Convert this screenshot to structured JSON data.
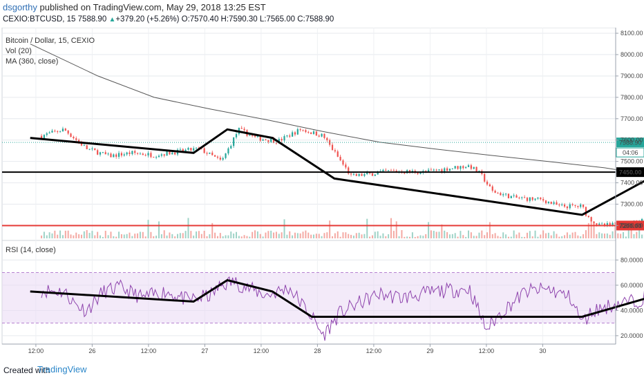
{
  "header": {
    "user": "dsgorthy",
    "published_text": "published on TradingView.com, May 29, 2018 13:25 EST",
    "symbol": "CEXIO:BTCUSD, 15",
    "last": "7588.90",
    "change": "+379.20 (+5.26%)",
    "o": "O:7570.40",
    "h": "H:7590.30",
    "l": "L:7565.00",
    "c": "C:7588.90"
  },
  "pane_labels": {
    "title": "Bitcoin / Dollar, 15, CEXIO",
    "vol": "Vol (20)",
    "ma": "MA (360, close)",
    "rsi": "RSI (14, close)"
  },
  "footer": {
    "created": "Created with",
    "brand": "TradingView"
  },
  "colors": {
    "up": "#26a69a",
    "down": "#ef5350",
    "ma": "#555555",
    "rsi": "#8e44ad",
    "rsi_band": "#e9d9f4",
    "support": "#000000",
    "red_level": "#e53935",
    "volume_up": "#9fd3c7",
    "volume_down": "#f4a9a3"
  },
  "chart_data": [
    {
      "type": "candlestick",
      "title": "Bitcoin / Dollar, 15, CEXIO",
      "x_ticks": [
        "12:00",
        "26",
        "12:00",
        "27",
        "12:00",
        "28",
        "12:00",
        "29",
        "12:00",
        "30"
      ],
      "y_ticks": [
        "8100.00",
        "8000.00",
        "7900.00",
        "7800.00",
        "7700.00",
        "7600.00",
        "7500.00",
        "7400.00",
        "7300.00",
        "7200.00"
      ],
      "ylim": [
        7140,
        8110
      ],
      "last_price_label": "7588.90",
      "countdown_label": "04:06",
      "price_path": [
        [
          0,
          7620
        ],
        [
          0.2,
          7650
        ],
        [
          0.4,
          7560
        ],
        [
          0.6,
          7525
        ],
        [
          0.8,
          7540
        ],
        [
          1.0,
          7530
        ],
        [
          1.2,
          7545
        ],
        [
          1.4,
          7560
        ],
        [
          1.6,
          7500
        ],
        [
          1.75,
          7650
        ],
        [
          1.9,
          7610
        ],
        [
          2.1,
          7595
        ],
        [
          2.3,
          7650
        ],
        [
          2.5,
          7620
        ],
        [
          2.75,
          7430
        ],
        [
          2.9,
          7440
        ],
        [
          3.1,
          7455
        ],
        [
          3.4,
          7450
        ],
        [
          3.65,
          7470
        ],
        [
          3.8,
          7480
        ],
        [
          3.9,
          7440
        ],
        [
          4.0,
          7360
        ],
        [
          4.2,
          7330
        ],
        [
          4.45,
          7320
        ],
        [
          4.6,
          7290
        ],
        [
          4.8,
          7290
        ],
        [
          4.85,
          7240
        ],
        [
          4.95,
          7200
        ],
        [
          5.2,
          7205
        ],
        [
          5.35,
          7230
        ],
        [
          5.45,
          7250
        ],
        [
          5.6,
          7500
        ],
        [
          5.75,
          7530
        ],
        [
          5.85,
          7560
        ],
        [
          5.9,
          7590
        ]
      ],
      "ma_series": [
        [
          -0.1,
          8050
        ],
        [
          0.5,
          7900
        ],
        [
          1.0,
          7800
        ],
        [
          1.5,
          7745
        ],
        [
          2.0,
          7695
        ],
        [
          2.5,
          7640
        ],
        [
          3.0,
          7590
        ],
        [
          3.5,
          7558
        ],
        [
          4.0,
          7528
        ],
        [
          4.5,
          7500
        ],
        [
          5.0,
          7470
        ],
        [
          5.3,
          7445
        ],
        [
          5.5,
          7430
        ],
        [
          5.85,
          7425
        ]
      ],
      "trendlines": [
        [
          [
            -0.1,
            7610
          ],
          [
            1.35,
            7540
          ],
          [
            1.65,
            7650
          ],
          [
            2.05,
            7610
          ],
          [
            2.6,
            7420
          ],
          [
            4.8,
            7250
          ],
          [
            5.55,
            7465
          ],
          [
            5.85,
            7525
          ]
        ]
      ],
      "horizontal_lines": [
        {
          "label": "7450.00",
          "value": 7450,
          "color": "#000000"
        },
        {
          "label": "7200.00",
          "value": 7200,
          "color": "#e53935"
        }
      ]
    },
    {
      "type": "line",
      "title": "RSI (14, close)",
      "y_ticks": [
        "80.0000",
        "60.0000",
        "40.0000",
        "20.0000"
      ],
      "ylim": [
        15,
        90
      ],
      "band": [
        30,
        70
      ],
      "rsi_path": [
        [
          0,
          56
        ],
        [
          0.2,
          55
        ],
        [
          0.3,
          45
        ],
        [
          0.4,
          40
        ],
        [
          0.55,
          55
        ],
        [
          0.7,
          58
        ],
        [
          0.9,
          50
        ],
        [
          1.1,
          55
        ],
        [
          1.3,
          48
        ],
        [
          1.5,
          52
        ],
        [
          1.6,
          60
        ],
        [
          1.7,
          63
        ],
        [
          1.85,
          57
        ],
        [
          2.0,
          52
        ],
        [
          2.2,
          58
        ],
        [
          2.4,
          35
        ],
        [
          2.5,
          20
        ],
        [
          2.65,
          38
        ],
        [
          2.8,
          45
        ],
        [
          3.0,
          53
        ],
        [
          3.2,
          50
        ],
        [
          3.5,
          55
        ],
        [
          3.8,
          57
        ],
        [
          3.95,
          25
        ],
        [
          4.1,
          40
        ],
        [
          4.3,
          55
        ],
        [
          4.5,
          57
        ],
        [
          4.7,
          50
        ],
        [
          4.8,
          30
        ],
        [
          4.9,
          40
        ],
        [
          5.1,
          45
        ],
        [
          5.3,
          48
        ],
        [
          5.45,
          55
        ],
        [
          5.55,
          82
        ],
        [
          5.65,
          75
        ],
        [
          5.75,
          65
        ],
        [
          5.85,
          72
        ]
      ],
      "trendlines": [
        [
          [
            -0.1,
            55
          ],
          [
            1.35,
            47
          ],
          [
            1.65,
            64
          ],
          [
            2.05,
            55
          ],
          [
            2.4,
            35
          ],
          [
            3.9,
            35
          ],
          [
            4.8,
            35
          ],
          [
            5.5,
            53
          ],
          [
            5.8,
            62
          ]
        ]
      ]
    }
  ]
}
